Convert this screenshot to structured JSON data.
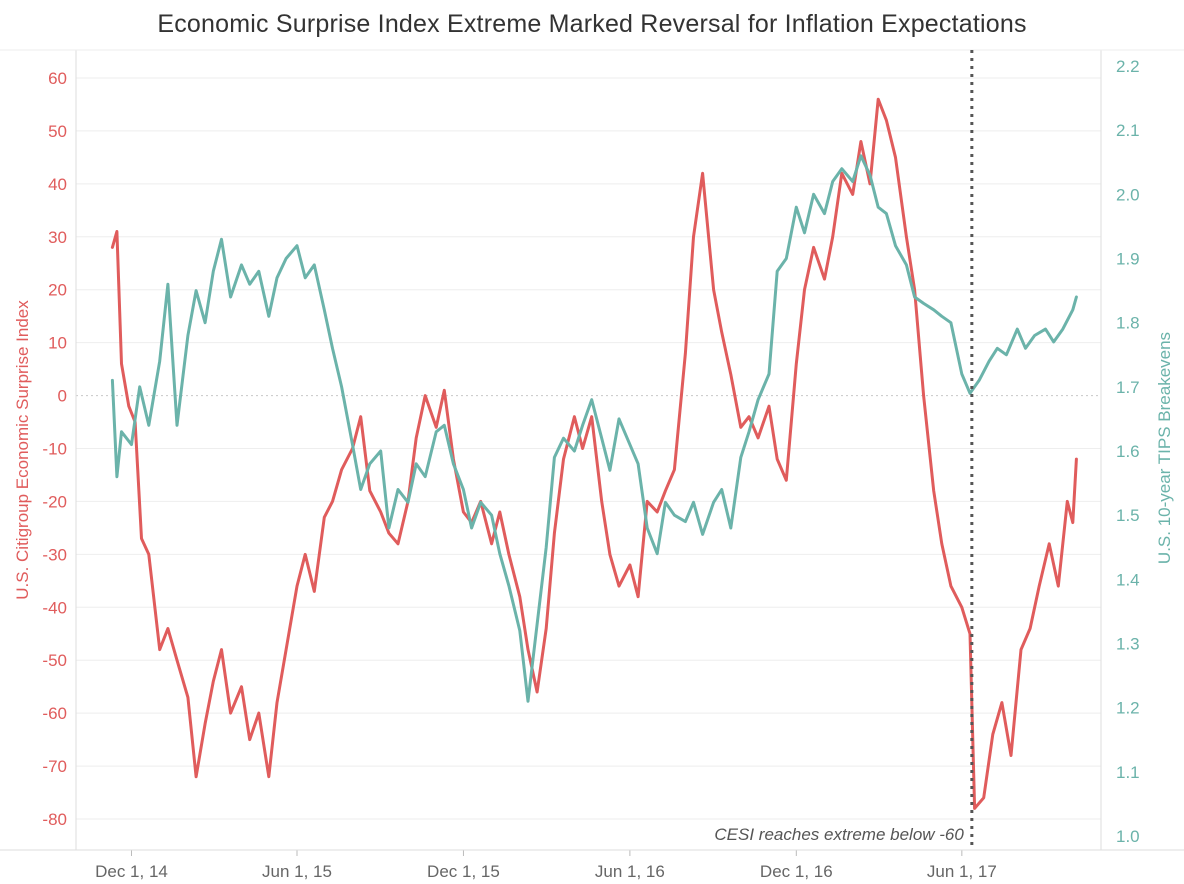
{
  "chart_data": {
    "type": "line",
    "title": "Economic Surprise Index Extreme Marked Reversal for Inflation Expectations",
    "x_ticks": [
      "Dec 1, 14",
      "Jun 1, 15",
      "Dec 1, 15",
      "Jun 1, 16",
      "Dec 1, 16",
      "Jun 1, 17"
    ],
    "xlim": [
      "2014-10-01",
      "2017-11-01"
    ],
    "y_left": {
      "label": "U.S. Citigroup Economic Surprise Index",
      "ticks": [
        "60",
        "50",
        "40",
        "30",
        "20",
        "10",
        "0",
        "-10",
        "-20",
        "-30",
        "-40",
        "-50",
        "-60",
        "-70",
        "-80"
      ],
      "range": [
        -82,
        62
      ]
    },
    "y_right": {
      "label": "U.S. 10-year TIPS Breakevens",
      "ticks": [
        "2.2",
        "2.1",
        "2.0",
        "1.9",
        "1.8",
        "1.7",
        "1.6",
        "1.5",
        "1.4",
        "1.3",
        "1.2",
        "1.1",
        "1.0"
      ],
      "range": [
        0.98,
        2.22
      ]
    },
    "series": [
      {
        "name": "U.S. Citigroup Economic Surprise Index",
        "axis": "left",
        "color": "#e05c5c",
        "points": [
          [
            "2014-11-10",
            28
          ],
          [
            "2014-11-15",
            31
          ],
          [
            "2014-11-20",
            6
          ],
          [
            "2014-11-28",
            -2
          ],
          [
            "2014-12-05",
            -5
          ],
          [
            "2014-12-12",
            -27
          ],
          [
            "2014-12-20",
            -30
          ],
          [
            "2015-01-01",
            -48
          ],
          [
            "2015-01-10",
            -44
          ],
          [
            "2015-01-20",
            -50
          ],
          [
            "2015-02-01",
            -57
          ],
          [
            "2015-02-10",
            -72
          ],
          [
            "2015-02-20",
            -62
          ],
          [
            "2015-03-01",
            -54
          ],
          [
            "2015-03-10",
            -48
          ],
          [
            "2015-03-20",
            -60
          ],
          [
            "2015-04-01",
            -55
          ],
          [
            "2015-04-10",
            -65
          ],
          [
            "2015-04-20",
            -60
          ],
          [
            "2015-05-01",
            -72
          ],
          [
            "2015-05-10",
            -58
          ],
          [
            "2015-05-20",
            -48
          ],
          [
            "2015-06-01",
            -36
          ],
          [
            "2015-06-10",
            -30
          ],
          [
            "2015-06-20",
            -37
          ],
          [
            "2015-07-01",
            -23
          ],
          [
            "2015-07-10",
            -20
          ],
          [
            "2015-07-20",
            -14
          ],
          [
            "2015-08-01",
            -10
          ],
          [
            "2015-08-10",
            -4
          ],
          [
            "2015-08-20",
            -18
          ],
          [
            "2015-09-01",
            -22
          ],
          [
            "2015-09-10",
            -26
          ],
          [
            "2015-09-20",
            -28
          ],
          [
            "2015-10-01",
            -20
          ],
          [
            "2015-10-10",
            -8
          ],
          [
            "2015-10-20",
            0
          ],
          [
            "2015-11-01",
            -6
          ],
          [
            "2015-11-10",
            1
          ],
          [
            "2015-11-20",
            -12
          ],
          [
            "2015-12-01",
            -22
          ],
          [
            "2015-12-10",
            -24
          ],
          [
            "2015-12-20",
            -20
          ],
          [
            "2016-01-01",
            -28
          ],
          [
            "2016-01-10",
            -22
          ],
          [
            "2016-01-20",
            -30
          ],
          [
            "2016-02-01",
            -38
          ],
          [
            "2016-02-10",
            -48
          ],
          [
            "2016-02-20",
            -56
          ],
          [
            "2016-03-01",
            -44
          ],
          [
            "2016-03-10",
            -26
          ],
          [
            "2016-03-20",
            -12
          ],
          [
            "2016-04-01",
            -4
          ],
          [
            "2016-04-10",
            -10
          ],
          [
            "2016-04-20",
            -4
          ],
          [
            "2016-05-01",
            -20
          ],
          [
            "2016-05-10",
            -30
          ],
          [
            "2016-05-20",
            -36
          ],
          [
            "2016-06-01",
            -32
          ],
          [
            "2016-06-10",
            -38
          ],
          [
            "2016-06-20",
            -20
          ],
          [
            "2016-07-01",
            -22
          ],
          [
            "2016-07-10",
            -18
          ],
          [
            "2016-07-20",
            -14
          ],
          [
            "2016-08-01",
            8
          ],
          [
            "2016-08-10",
            30
          ],
          [
            "2016-08-20",
            42
          ],
          [
            "2016-09-01",
            20
          ],
          [
            "2016-09-10",
            12
          ],
          [
            "2016-09-20",
            4
          ],
          [
            "2016-10-01",
            -6
          ],
          [
            "2016-10-10",
            -4
          ],
          [
            "2016-10-20",
            -8
          ],
          [
            "2016-11-01",
            -2
          ],
          [
            "2016-11-10",
            -12
          ],
          [
            "2016-11-20",
            -16
          ],
          [
            "2016-12-01",
            6
          ],
          [
            "2016-12-10",
            20
          ],
          [
            "2016-12-20",
            28
          ],
          [
            "2017-01-01",
            22
          ],
          [
            "2017-01-10",
            30
          ],
          [
            "2017-01-20",
            42
          ],
          [
            "2017-02-01",
            38
          ],
          [
            "2017-02-10",
            48
          ],
          [
            "2017-02-20",
            40
          ],
          [
            "2017-03-01",
            56
          ],
          [
            "2017-03-10",
            52
          ],
          [
            "2017-03-20",
            45
          ],
          [
            "2017-04-01",
            30
          ],
          [
            "2017-04-10",
            20
          ],
          [
            "2017-04-20",
            0
          ],
          [
            "2017-05-01",
            -18
          ],
          [
            "2017-05-10",
            -28
          ],
          [
            "2017-05-20",
            -36
          ],
          [
            "2017-06-01",
            -40
          ],
          [
            "2017-06-10",
            -45
          ],
          [
            "2017-06-15",
            -78
          ],
          [
            "2017-06-25",
            -76
          ],
          [
            "2017-07-05",
            -64
          ],
          [
            "2017-07-15",
            -58
          ],
          [
            "2017-07-25",
            -68
          ],
          [
            "2017-08-05",
            -48
          ],
          [
            "2017-08-15",
            -44
          ],
          [
            "2017-08-25",
            -36
          ],
          [
            "2017-09-05",
            -28
          ],
          [
            "2017-09-15",
            -36
          ],
          [
            "2017-09-25",
            -20
          ],
          [
            "2017-10-01",
            -24
          ],
          [
            "2017-10-05",
            -12
          ]
        ]
      },
      {
        "name": "U.S. 10-year TIPS Breakevens",
        "axis": "right",
        "color": "#6bb3aa",
        "points": [
          [
            "2014-11-10",
            1.71
          ],
          [
            "2014-11-15",
            1.56
          ],
          [
            "2014-11-20",
            1.63
          ],
          [
            "2014-12-01",
            1.61
          ],
          [
            "2014-12-10",
            1.7
          ],
          [
            "2014-12-20",
            1.64
          ],
          [
            "2015-01-01",
            1.74
          ],
          [
            "2015-01-10",
            1.86
          ],
          [
            "2015-01-20",
            1.64
          ],
          [
            "2015-02-01",
            1.78
          ],
          [
            "2015-02-10",
            1.85
          ],
          [
            "2015-02-20",
            1.8
          ],
          [
            "2015-03-01",
            1.88
          ],
          [
            "2015-03-10",
            1.93
          ],
          [
            "2015-03-20",
            1.84
          ],
          [
            "2015-04-01",
            1.89
          ],
          [
            "2015-04-10",
            1.86
          ],
          [
            "2015-04-20",
            1.88
          ],
          [
            "2015-05-01",
            1.81
          ],
          [
            "2015-05-10",
            1.87
          ],
          [
            "2015-05-20",
            1.9
          ],
          [
            "2015-06-01",
            1.92
          ],
          [
            "2015-06-10",
            1.87
          ],
          [
            "2015-06-20",
            1.89
          ],
          [
            "2015-07-01",
            1.82
          ],
          [
            "2015-07-10",
            1.76
          ],
          [
            "2015-07-20",
            1.7
          ],
          [
            "2015-08-01",
            1.61
          ],
          [
            "2015-08-10",
            1.54
          ],
          [
            "2015-08-20",
            1.58
          ],
          [
            "2015-09-01",
            1.6
          ],
          [
            "2015-09-10",
            1.48
          ],
          [
            "2015-09-20",
            1.54
          ],
          [
            "2015-10-01",
            1.52
          ],
          [
            "2015-10-10",
            1.58
          ],
          [
            "2015-10-20",
            1.56
          ],
          [
            "2015-11-01",
            1.63
          ],
          [
            "2015-11-10",
            1.64
          ],
          [
            "2015-11-20",
            1.58
          ],
          [
            "2015-12-01",
            1.54
          ],
          [
            "2015-12-10",
            1.48
          ],
          [
            "2015-12-20",
            1.52
          ],
          [
            "2016-01-01",
            1.5
          ],
          [
            "2016-01-10",
            1.44
          ],
          [
            "2016-01-20",
            1.39
          ],
          [
            "2016-02-01",
            1.32
          ],
          [
            "2016-02-10",
            1.21
          ],
          [
            "2016-02-20",
            1.33
          ],
          [
            "2016-03-01",
            1.45
          ],
          [
            "2016-03-10",
            1.59
          ],
          [
            "2016-03-20",
            1.62
          ],
          [
            "2016-04-01",
            1.6
          ],
          [
            "2016-04-10",
            1.64
          ],
          [
            "2016-04-20",
            1.68
          ],
          [
            "2016-05-01",
            1.62
          ],
          [
            "2016-05-10",
            1.57
          ],
          [
            "2016-05-20",
            1.65
          ],
          [
            "2016-06-01",
            1.61
          ],
          [
            "2016-06-10",
            1.58
          ],
          [
            "2016-06-20",
            1.48
          ],
          [
            "2016-07-01",
            1.44
          ],
          [
            "2016-07-10",
            1.52
          ],
          [
            "2016-07-20",
            1.5
          ],
          [
            "2016-08-01",
            1.49
          ],
          [
            "2016-08-10",
            1.52
          ],
          [
            "2016-08-20",
            1.47
          ],
          [
            "2016-09-01",
            1.52
          ],
          [
            "2016-09-10",
            1.54
          ],
          [
            "2016-09-20",
            1.48
          ],
          [
            "2016-10-01",
            1.59
          ],
          [
            "2016-10-10",
            1.63
          ],
          [
            "2016-10-20",
            1.68
          ],
          [
            "2016-11-01",
            1.72
          ],
          [
            "2016-11-10",
            1.88
          ],
          [
            "2016-11-20",
            1.9
          ],
          [
            "2016-12-01",
            1.98
          ],
          [
            "2016-12-10",
            1.94
          ],
          [
            "2016-12-20",
            2.0
          ],
          [
            "2017-01-01",
            1.97
          ],
          [
            "2017-01-10",
            2.02
          ],
          [
            "2017-01-20",
            2.04
          ],
          [
            "2017-02-01",
            2.02
          ],
          [
            "2017-02-10",
            2.06
          ],
          [
            "2017-02-20",
            2.03
          ],
          [
            "2017-03-01",
            1.98
          ],
          [
            "2017-03-10",
            1.97
          ],
          [
            "2017-03-20",
            1.92
          ],
          [
            "2017-04-01",
            1.89
          ],
          [
            "2017-04-10",
            1.84
          ],
          [
            "2017-04-20",
            1.83
          ],
          [
            "2017-05-01",
            1.82
          ],
          [
            "2017-05-10",
            1.81
          ],
          [
            "2017-05-20",
            1.8
          ],
          [
            "2017-06-01",
            1.72
          ],
          [
            "2017-06-10",
            1.69
          ],
          [
            "2017-06-20",
            1.71
          ],
          [
            "2017-07-01",
            1.74
          ],
          [
            "2017-07-10",
            1.76
          ],
          [
            "2017-07-20",
            1.75
          ],
          [
            "2017-08-01",
            1.79
          ],
          [
            "2017-08-10",
            1.76
          ],
          [
            "2017-08-20",
            1.78
          ],
          [
            "2017-09-01",
            1.79
          ],
          [
            "2017-09-10",
            1.77
          ],
          [
            "2017-09-20",
            1.79
          ],
          [
            "2017-10-01",
            1.82
          ],
          [
            "2017-10-05",
            1.84
          ]
        ]
      }
    ],
    "reference_line": {
      "date": "2017-06-12",
      "style": "dotted"
    },
    "annotation": "CESI reaches extreme below -60",
    "grid": "horizontal",
    "colors": {
      "left": "#e05c5c",
      "right": "#6bb3aa",
      "marker": "#555555"
    }
  }
}
